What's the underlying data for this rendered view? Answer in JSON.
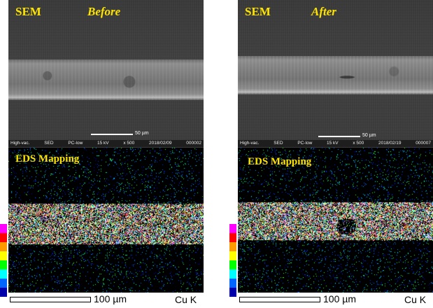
{
  "before": {
    "sem_label": "SEM",
    "state_label": "Before",
    "scale_label": "50 µm",
    "info": [
      "High-vac.",
      "SED",
      "PC-low",
      "15 kV",
      "x 500",
      "2018/02/09",
      "000002"
    ],
    "eds_label": "EDS Mapping",
    "map_scale_label": "100 µm",
    "element_label": "Cu K"
  },
  "after": {
    "sem_label": "SEM",
    "state_label": "After",
    "scale_label": "50 µm",
    "info": [
      "High-vac.",
      "SED",
      "PC-low",
      "15 kV",
      "x 500",
      "2018/02/19",
      "000007"
    ],
    "eds_label": "EDS Mapping",
    "map_scale_label": "100 µm",
    "element_label": "Cu K"
  },
  "legend_colors": [
    "#ff00ff",
    "#ff0000",
    "#ff9900",
    "#ffff00",
    "#00ff00",
    "#00ffff",
    "#0066ff",
    "#0000aa"
  ]
}
